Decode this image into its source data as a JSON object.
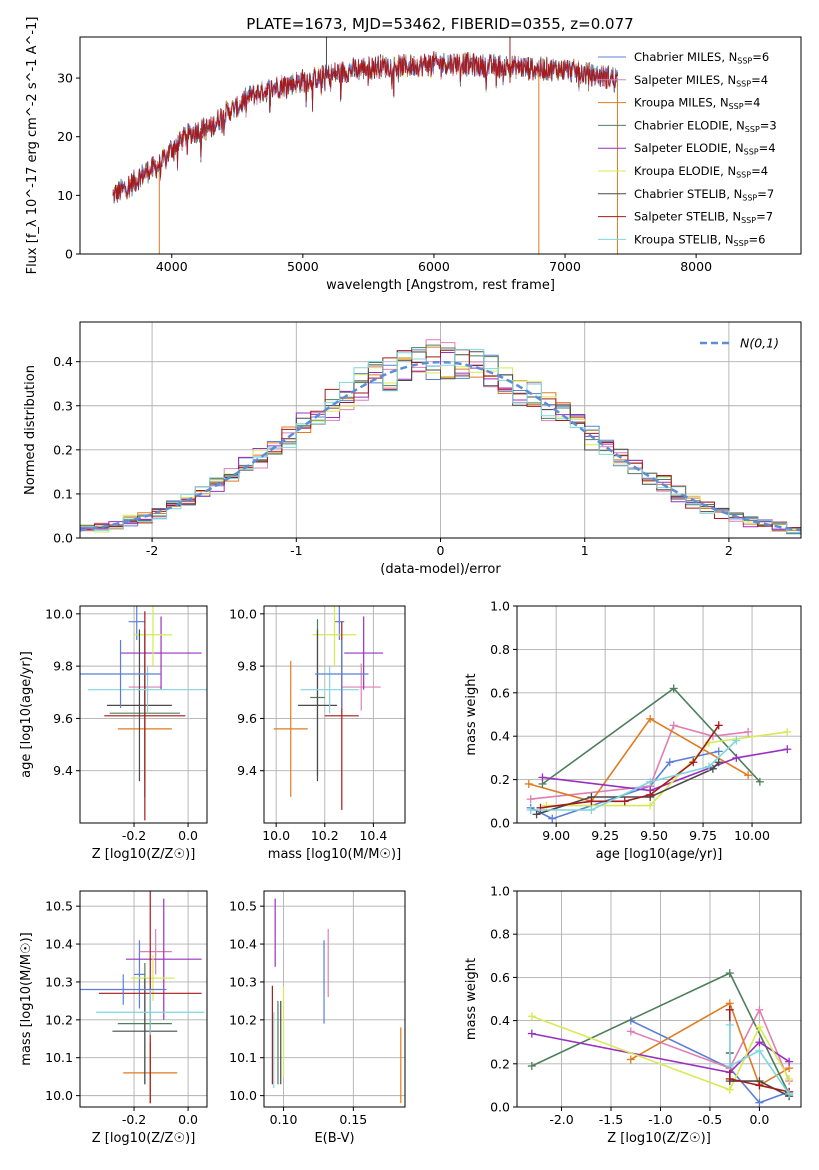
{
  "figure_title": "PLATE=1673, MJD=53462, FIBERID=0355, z=0.077",
  "colors": {
    "chabrier_miles": "#5b7fd6",
    "salpeter_miles": "#e07fb4",
    "kroupa_miles": "#e07b21",
    "chabrier_elodie": "#4f7f5c",
    "salpeter_elodie": "#9b30c0",
    "kroupa_elodie": "#d7ea52",
    "chabrier_stelib": "#4a4a4a",
    "salpeter_stelib": "#a61a1a",
    "kroupa_stelib": "#7fd6dd",
    "normal": "#5b8ed6",
    "grid": "#b0b0b0"
  },
  "chart_data": [
    {
      "id": "spectrum",
      "type": "line",
      "title": "PLATE=1673, MJD=53462, FIBERID=0355, z=0.077",
      "xlabel": "wavelength [Angstrom, rest frame]",
      "ylabel": "Flux [f_λ 10^-17 erg cm^-2 s^-1 A^-1]",
      "xlim": [
        3300,
        8800
      ],
      "ylim": [
        0,
        37
      ],
      "xticks": [
        4000,
        5000,
        6000,
        7000,
        8000
      ],
      "yticks": [
        0,
        10,
        20,
        30
      ],
      "grid": false,
      "legend_position": "right",
      "continuum": {
        "x": [
          3550,
          3700,
          3800,
          3900,
          4000,
          4100,
          4200,
          4300,
          4400,
          4500,
          4600,
          4800,
          5000,
          5200,
          5400,
          5600,
          5800,
          6000,
          6200,
          6400,
          6600,
          6800,
          7000,
          7200,
          7400
        ],
        "y": [
          10,
          12,
          14,
          15,
          18,
          20,
          21,
          21.5,
          24,
          25,
          27,
          28.5,
          29.5,
          30.5,
          31.5,
          32,
          32,
          32.5,
          32.5,
          32,
          32,
          31.5,
          31.5,
          30.5,
          30
        ]
      },
      "series": [
        {
          "name": "Chabrier MILES, N_SSP=6",
          "legend": "Chabrier MILES, N",
          "n": "6",
          "color": "#5b7fd6"
        },
        {
          "name": "Salpeter MILES, N_SSP=4",
          "legend": "Salpeter MILES, N",
          "n": "4",
          "color": "#e07fb4"
        },
        {
          "name": "Kroupa MILES, N_SSP=4",
          "legend": "Kroupa MILES, N",
          "n": "4",
          "color": "#e07b21"
        },
        {
          "name": "Chabrier ELODIE, N_SSP=3",
          "legend": "Chabrier ELODIE, N",
          "n": "3",
          "color": "#4f7f5c"
        },
        {
          "name": "Salpeter ELODIE, N_SSP=4",
          "legend": "Salpeter ELODIE, N",
          "n": "4",
          "color": "#9b30c0"
        },
        {
          "name": "Kroupa ELODIE, N_SSP=4",
          "legend": "Kroupa ELODIE, N",
          "n": "4",
          "color": "#d7ea52"
        },
        {
          "name": "Chabrier STELIB, N_SSP=7",
          "legend": "Chabrier STELIB, N",
          "n": "7",
          "color": "#4a4a4a"
        },
        {
          "name": "Salpeter STELIB, N_SSP=7",
          "legend": "Salpeter STELIB, N",
          "n": "7",
          "color": "#a61a1a"
        },
        {
          "name": "Kroupa STELIB, N_SSP=6",
          "legend": "Kroupa STELIB, N",
          "n": "6",
          "color": "#7fd6dd"
        }
      ],
      "legend_sub": "SSP"
    },
    {
      "id": "residuals",
      "type": "histogram",
      "xlabel": "(data-model)/error",
      "ylabel": "Normed distribution",
      "xlim": [
        -2.5,
        2.5
      ],
      "ylim": [
        0,
        0.49
      ],
      "xticks": [
        -2,
        -1,
        0,
        1,
        2
      ],
      "yticks": [
        0.0,
        0.1,
        0.2,
        0.3,
        0.4
      ],
      "grid": true,
      "bin_width": 0.1,
      "bins_start": -2.5,
      "legend": "N(0,1)",
      "legend_position": "top-right",
      "normal": {
        "mean": 0,
        "sigma": 1
      }
    },
    {
      "id": "age_vs_z",
      "type": "errorbar",
      "xlabel": "Z [log10(Z/Z☉)]",
      "ylabel": "age [log10(age/yr)]",
      "xlim": [
        -0.4,
        0.07
      ],
      "ylim": [
        9.2,
        10.03
      ],
      "xticks": [
        -0.2,
        0.0
      ],
      "yticks": [
        9.4,
        9.6,
        9.8,
        10.0
      ],
      "grid": true,
      "points": [
        {
          "color": "#5b7fd6",
          "x": -0.19,
          "xerr": 0.03,
          "y": 9.97,
          "yerr": 0.07
        },
        {
          "color": "#e07fb4",
          "x": -0.16,
          "xerr": 0.06,
          "y": 9.72,
          "yerr": 0.09
        },
        {
          "color": "#e07b21",
          "x": -0.16,
          "xerr": 0.1,
          "y": 9.56,
          "yerr": 0.19
        },
        {
          "color": "#4f7f5c",
          "x": -0.16,
          "xerr": 0.13,
          "y": 9.62,
          "yerr": 0.32
        },
        {
          "color": "#9b30c0",
          "x": -0.1,
          "xerr": 0.15,
          "y": 9.85,
          "yerr": 0.14
        },
        {
          "color": "#d7ea52",
          "x": -0.13,
          "xerr": 0.07,
          "y": 9.92,
          "yerr": 0.12
        },
        {
          "color": "#4a4a4a",
          "x": -0.18,
          "xerr": 0.12,
          "y": 9.65,
          "yerr": 0.29
        },
        {
          "color": "#a61a1a",
          "x": -0.16,
          "xerr": 0.15,
          "y": 9.61,
          "yerr": 0.4
        },
        {
          "color": "#7fd6dd",
          "x": -0.15,
          "xerr": 0.22,
          "y": 9.71,
          "yerr": 0.09
        },
        {
          "color": "#5b7fd6",
          "x": -0.25,
          "xerr": 0.15,
          "y": 9.77,
          "yerr": 0.13
        }
      ]
    },
    {
      "id": "age_vs_mass",
      "type": "errorbar",
      "xlabel": "mass [log10(M/M☉)]",
      "ylabel": "",
      "xlim": [
        9.95,
        10.53
      ],
      "ylim": [
        9.2,
        10.03
      ],
      "xticks": [
        10.0,
        10.2,
        10.4
      ],
      "yticks": [
        9.4,
        9.6,
        9.8,
        10.0
      ],
      "grid": true,
      "points": [
        {
          "color": "#5b7fd6",
          "x": 10.26,
          "xerr": 0.02,
          "y": 9.97,
          "yerr": 0.07
        },
        {
          "color": "#e07fb4",
          "x": 10.35,
          "xerr": 0.08,
          "y": 9.72,
          "yerr": 0.09
        },
        {
          "color": "#e07b21",
          "x": 10.06,
          "xerr": 0.07,
          "y": 9.56,
          "yerr": 0.26
        },
        {
          "color": "#4f7f5c",
          "x": 10.17,
          "xerr": 0.03,
          "y": 9.68,
          "yerr": 0.3
        },
        {
          "color": "#9b30c0",
          "x": 10.36,
          "xerr": 0.08,
          "y": 9.85,
          "yerr": 0.14
        },
        {
          "color": "#d7ea52",
          "x": 10.24,
          "xerr": 0.09,
          "y": 9.92,
          "yerr": 0.12
        },
        {
          "color": "#4a4a4a",
          "x": 10.17,
          "xerr": 0.08,
          "y": 9.65,
          "yerr": 0.29
        },
        {
          "color": "#a61a1a",
          "x": 10.27,
          "xerr": 0.07,
          "y": 9.61,
          "yerr": 0.36
        },
        {
          "color": "#7fd6dd",
          "x": 10.22,
          "xerr": 0.12,
          "y": 9.71,
          "yerr": 0.09
        },
        {
          "color": "#5b7fd6",
          "x": 10.27,
          "xerr": 0.11,
          "y": 9.77,
          "yerr": 0.13
        }
      ]
    },
    {
      "id": "mw_vs_age",
      "type": "line",
      "xlabel": "age [log10(age/yr)]",
      "ylabel": "mass weight",
      "xlim": [
        8.8,
        10.25
      ],
      "ylim": [
        0,
        1.0
      ],
      "xticks": [
        9.0,
        9.25,
        9.5,
        9.75,
        10.0
      ],
      "yticks": [
        0.0,
        0.2,
        0.4,
        0.6,
        0.8,
        1.0
      ],
      "grid": true,
      "series": [
        {
          "color": "#5b7fd6",
          "x": [
            8.87,
            8.98,
            9.48,
            9.58,
            9.83
          ],
          "y": [
            0.07,
            0.02,
            0.17,
            0.28,
            0.33
          ]
        },
        {
          "color": "#e07fb4",
          "x": [
            8.87,
            9.48,
            9.6,
            9.8,
            9.98
          ],
          "y": [
            0.11,
            0.17,
            0.45,
            0.4,
            0.42
          ]
        },
        {
          "color": "#e07b21",
          "x": [
            8.86,
            9.18,
            9.48,
            9.98
          ],
          "y": [
            0.18,
            0.1,
            0.48,
            0.22
          ]
        },
        {
          "color": "#4f7f5c",
          "x": [
            8.93,
            9.6,
            10.04
          ],
          "y": [
            0.18,
            0.62,
            0.19
          ]
        },
        {
          "color": "#9b30c0",
          "x": [
            8.93,
            9.48,
            9.92,
            10.18
          ],
          "y": [
            0.21,
            0.15,
            0.3,
            0.34
          ]
        },
        {
          "color": "#d7ea52",
          "x": [
            8.95,
            9.48,
            9.78,
            10.18
          ],
          "y": [
            0.08,
            0.08,
            0.37,
            0.42
          ]
        },
        {
          "color": "#4a4a4a",
          "x": [
            8.9,
            9.18,
            9.48,
            9.8,
            9.83
          ],
          "y": [
            0.04,
            0.12,
            0.12,
            0.25,
            0.28
          ]
        },
        {
          "color": "#a61a1a",
          "x": [
            8.92,
            9.18,
            9.35,
            9.48,
            9.7,
            9.83
          ],
          "y": [
            0.07,
            0.1,
            0.1,
            0.13,
            0.28,
            0.45
          ]
        },
        {
          "color": "#7fd6dd",
          "x": [
            8.87,
            9.18,
            9.48,
            9.78,
            9.92
          ],
          "y": [
            0.06,
            0.06,
            0.19,
            0.26,
            0.38
          ]
        }
      ]
    },
    {
      "id": "mass_vs_z",
      "type": "errorbar",
      "xlabel": "Z [log10(Z/Z☉)]",
      "ylabel": "mass [log10(M/M☉)]",
      "xlim": [
        -0.4,
        0.07
      ],
      "ylim": [
        9.97,
        10.54
      ],
      "xticks": [
        -0.2,
        0.0
      ],
      "yticks": [
        10.0,
        10.1,
        10.2,
        10.3,
        10.4,
        10.5
      ],
      "grid": true,
      "points": [
        {
          "color": "#5b7fd6",
          "x": -0.18,
          "xerr": 0.02,
          "y": 10.32,
          "yerr": 0.09
        },
        {
          "color": "#e07fb4",
          "x": -0.12,
          "xerr": 0.06,
          "y": 10.38,
          "yerr": 0.06
        },
        {
          "color": "#e07b21",
          "x": -0.14,
          "xerr": 0.1,
          "y": 10.06,
          "yerr": 0.08
        },
        {
          "color": "#4f7f5c",
          "x": -0.16,
          "xerr": 0.1,
          "y": 10.19,
          "yerr": 0.16
        },
        {
          "color": "#9b30c0",
          "x": -0.09,
          "xerr": 0.14,
          "y": 10.36,
          "yerr": 0.16
        },
        {
          "color": "#d7ea52",
          "x": -0.13,
          "xerr": 0.08,
          "y": 10.31,
          "yerr": 0.06
        },
        {
          "color": "#4a4a4a",
          "x": -0.16,
          "xerr": 0.12,
          "y": 10.17,
          "yerr": 0.14
        },
        {
          "color": "#a61a1a",
          "x": -0.14,
          "xerr": 0.19,
          "y": 10.27,
          "yerr": 0.29
        },
        {
          "color": "#7fd6dd",
          "x": -0.14,
          "xerr": 0.2,
          "y": 10.22,
          "yerr": 0.06
        },
        {
          "color": "#5b7fd6",
          "x": -0.24,
          "xerr": 0.16,
          "y": 10.28,
          "yerr": 0.04
        }
      ]
    },
    {
      "id": "mass_vs_ebv",
      "type": "errorbar",
      "xlabel": "E(B-V)",
      "ylabel": "",
      "xlim": [
        0.086,
        0.187
      ],
      "ylim": [
        9.97,
        10.54
      ],
      "xticks": [
        0.1,
        0.15
      ],
      "yticks": [
        10.0,
        10.1,
        10.2,
        10.3,
        10.4,
        10.5
      ],
      "grid": true,
      "points": [
        {
          "color": "#5b7fd6",
          "x": 0.129,
          "xerr": 0,
          "y": 10.3,
          "yerr": 0.11
        },
        {
          "color": "#e07fb4",
          "x": 0.132,
          "xerr": 0,
          "y": 10.35,
          "yerr": 0.09
        },
        {
          "color": "#e07b21",
          "x": 0.184,
          "xerr": 0,
          "y": 10.08,
          "yerr": 0.1
        },
        {
          "color": "#4f7f5c",
          "x": 0.096,
          "xerr": 0,
          "y": 10.14,
          "yerr": 0.11
        },
        {
          "color": "#9b30c0",
          "x": 0.094,
          "xerr": 0,
          "y": 10.43,
          "yerr": 0.09
        },
        {
          "color": "#d7ea52",
          "x": 0.1,
          "xerr": 0,
          "y": 10.17,
          "yerr": 0.12
        },
        {
          "color": "#4a4a4a",
          "x": 0.098,
          "xerr": 0,
          "y": 10.14,
          "yerr": 0.11
        },
        {
          "color": "#a61a1a",
          "x": 0.092,
          "xerr": 0,
          "y": 10.16,
          "yerr": 0.13
        },
        {
          "color": "#7fd6dd",
          "x": 0.093,
          "xerr": 0,
          "y": 10.12,
          "yerr": 0.1
        }
      ]
    },
    {
      "id": "mw_vs_z",
      "type": "line",
      "xlabel": "Z [log10(Z/Z☉)]",
      "ylabel": "mass weight",
      "xlim": [
        -2.45,
        0.42
      ],
      "ylim": [
        0,
        1.0
      ],
      "xticks": [
        -2.0,
        -1.5,
        -1.0,
        -0.5,
        0.0
      ],
      "yticks": [
        0.0,
        0.2,
        0.4,
        0.6,
        0.8,
        1.0
      ],
      "grid": true,
      "series": [
        {
          "color": "#5b7fd6",
          "x": [
            -1.3,
            -0.3,
            0.0,
            0.3
          ],
          "y": [
            0.4,
            0.18,
            0.02,
            0.07
          ]
        },
        {
          "color": "#e07fb4",
          "x": [
            -1.3,
            -0.3,
            0.0,
            0.3
          ],
          "y": [
            0.35,
            0.18,
            0.45,
            0.12
          ]
        },
        {
          "color": "#e07b21",
          "x": [
            -1.3,
            -0.3,
            0.0,
            0.3
          ],
          "y": [
            0.22,
            0.48,
            0.1,
            0.18
          ]
        },
        {
          "color": "#4f7f5c",
          "x": [
            -2.3,
            -0.3,
            0.3
          ],
          "y": [
            0.19,
            0.62,
            0.06
          ]
        },
        {
          "color": "#9b30c0",
          "x": [
            -2.3,
            -0.3,
            0.0,
            0.3
          ],
          "y": [
            0.34,
            0.16,
            0.3,
            0.21
          ]
        },
        {
          "color": "#d7ea52",
          "x": [
            -2.3,
            -0.3,
            0.0,
            0.3
          ],
          "y": [
            0.42,
            0.08,
            0.37,
            0.13
          ]
        },
        {
          "color": "#4a4a4a",
          "x": [
            -0.3,
            -0.3,
            0.0,
            0.3
          ],
          "y": [
            0.25,
            0.12,
            0.12,
            0.05
          ]
        },
        {
          "color": "#a61a1a",
          "x": [
            -0.3,
            -0.3,
            0.0,
            0.3
          ],
          "y": [
            0.45,
            0.13,
            0.1,
            0.07
          ]
        },
        {
          "color": "#7fd6dd",
          "x": [
            -0.3,
            -0.3,
            0.0,
            0.3
          ],
          "y": [
            0.38,
            0.19,
            0.26,
            0.06
          ]
        }
      ]
    }
  ]
}
